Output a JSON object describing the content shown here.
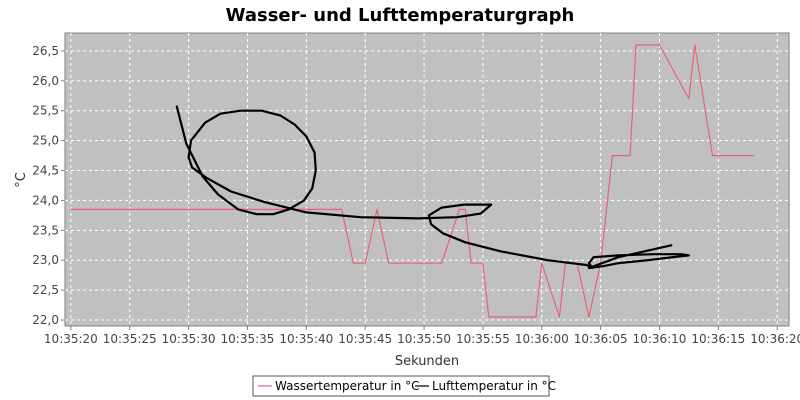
{
  "chart_data": {
    "type": "line",
    "title": "Wasser- und Lufttemperaturgraph",
    "xlabel": "Sekunden",
    "ylabel": "°C",
    "x_ticks": [
      "10:35:20",
      "10:35:25",
      "10:35:30",
      "10:35:35",
      "10:35:40",
      "10:35:45",
      "10:35:50",
      "10:35:55",
      "10:36:00",
      "10:36:05",
      "10:36:10",
      "10:36:15",
      "10:36:20"
    ],
    "y_ticks": [
      "22,0",
      "22,5",
      "23,0",
      "23,5",
      "24,0",
      "24,5",
      "25,0",
      "25,5",
      "26,0",
      "26,5"
    ],
    "xlim_seconds": [
      -0.5,
      61.0
    ],
    "ylim": [
      21.9,
      26.8
    ],
    "grid": true,
    "plot_background": "#c0c0c0",
    "legend_position": "bottom",
    "series": [
      {
        "name": "Wassertemperatur in °C",
        "color": "#e8637a",
        "x_seconds": [
          0.0,
          23.0,
          24.0,
          25.0,
          26.0,
          27.0,
          28.0,
          31.5,
          33.0,
          33.5,
          34.0,
          35.0,
          35.5,
          38.5,
          39.5,
          40.0,
          41.5,
          42.0,
          43.0,
          44.0,
          45.0,
          46.0,
          47.5,
          48.0,
          48.5,
          49.0,
          50.0,
          52.5,
          53.0,
          54.5,
          55.0,
          57.0,
          58.0
        ],
        "y": [
          23.85,
          23.85,
          22.95,
          22.95,
          23.85,
          22.95,
          22.95,
          22.95,
          23.85,
          23.85,
          22.95,
          22.95,
          22.05,
          22.05,
          22.05,
          22.95,
          22.05,
          22.95,
          22.95,
          22.05,
          22.95,
          24.75,
          24.75,
          26.6,
          26.6,
          26.6,
          26.6,
          25.7,
          26.6,
          24.75,
          24.75,
          24.75,
          24.75
        ]
      },
      {
        "name": "Lufttemperatur in °C",
        "color": "#000000",
        "x_seconds": [
          9.0,
          9.8,
          11.2,
          12.5,
          14.2,
          15.8,
          17.2,
          18.5,
          19.8,
          20.5,
          20.8,
          20.7,
          20.0,
          19.0,
          17.8,
          16.2,
          14.4,
          12.7,
          11.4,
          10.2,
          10.0,
          10.3,
          11.5,
          13.6,
          16.5,
          20.0,
          24.6,
          29.5,
          32.8,
          34.8,
          35.7,
          33.4,
          31.5,
          30.4,
          30.6,
          31.6,
          33.5,
          36.5,
          40.5,
          43.8,
          44.3,
          44.0,
          44.4,
          46.5,
          49.5,
          51.8,
          52.5,
          51.5,
          49.0,
          46.5,
          45.2,
          44.0,
          46.5,
          51.0
        ],
        "y": [
          25.57,
          24.95,
          24.4,
          24.1,
          23.85,
          23.77,
          23.77,
          23.85,
          24.0,
          24.2,
          24.5,
          24.8,
          25.07,
          25.27,
          25.42,
          25.5,
          25.5,
          25.45,
          25.3,
          25.0,
          24.72,
          24.55,
          24.38,
          24.15,
          23.97,
          23.8,
          23.72,
          23.7,
          23.72,
          23.78,
          23.93,
          23.93,
          23.88,
          23.75,
          23.6,
          23.45,
          23.3,
          23.15,
          23.0,
          22.92,
          22.87,
          22.95,
          23.05,
          23.08,
          23.1,
          23.1,
          23.08,
          23.06,
          23.0,
          22.95,
          22.9,
          22.87,
          23.05,
          23.25
        ]
      }
    ]
  }
}
